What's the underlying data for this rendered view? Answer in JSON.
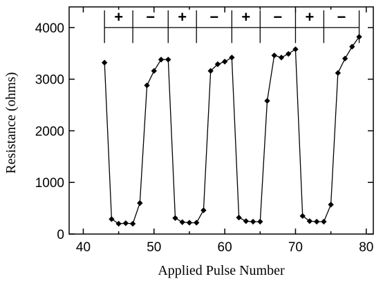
{
  "chart_data": {
    "type": "line",
    "xlabel": "Applied Pulse Number",
    "ylabel": "Resistance (ohms)",
    "xlim": [
      38,
      81
    ],
    "ylim": [
      0,
      4400
    ],
    "x_ticks": [
      40,
      50,
      60,
      70,
      80
    ],
    "y_ticks": [
      0,
      1000,
      2000,
      3000,
      4000
    ],
    "grid": false,
    "marker": "diamond",
    "color": "#000000",
    "series": [
      {
        "x": [
          43,
          44,
          45,
          46,
          47,
          48,
          49,
          50,
          51,
          52,
          53,
          54,
          55,
          56,
          57,
          58,
          59,
          60,
          61,
          62,
          63,
          64,
          65,
          66,
          67,
          68,
          69,
          70,
          71,
          72,
          73,
          74,
          75,
          76,
          77,
          78,
          79
        ],
        "y": [
          3320,
          290,
          200,
          210,
          200,
          600,
          2880,
          3160,
          3380,
          3380,
          310,
          230,
          220,
          220,
          460,
          3160,
          3290,
          3340,
          3420,
          320,
          250,
          240,
          240,
          2580,
          3460,
          3420,
          3490,
          3580,
          350,
          250,
          240,
          240,
          570,
          3120,
          3400,
          3630,
          3820
        ]
      }
    ],
    "pulse_bar": {
      "boundaries": [
        43,
        47,
        52,
        56,
        61,
        65,
        70,
        74,
        79
      ],
      "labels": [
        "+",
        "−",
        "+",
        "−",
        "+",
        "−",
        "+",
        "−"
      ]
    }
  }
}
